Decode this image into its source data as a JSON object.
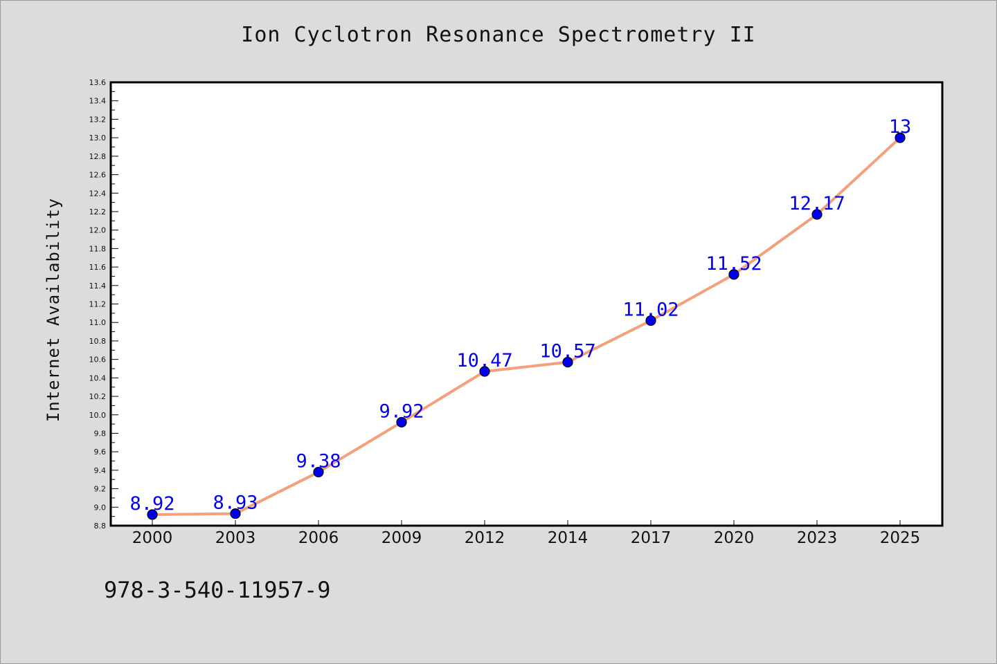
{
  "chart_data": {
    "type": "line",
    "title": "Ion Cyclotron Resonance Spectrometry II",
    "xlabel": "",
    "ylabel": "Internet Availability",
    "categories": [
      "2000",
      "2003",
      "2006",
      "2009",
      "2012",
      "2014",
      "2017",
      "2020",
      "2023",
      "2025"
    ],
    "series": [
      {
        "values": [
          8.92,
          8.93,
          9.38,
          9.92,
          10.47,
          10.57,
          11.02,
          11.52,
          12.17,
          13
        ],
        "labels": [
          "8.92",
          "8.93",
          "9.38",
          "9.92",
          "10.47",
          "10.57",
          "11.02",
          "11.52",
          "12.17",
          "13"
        ],
        "line_color": "#f4a07c",
        "marker_color": "#0000ee",
        "label_color": "#0000ee"
      }
    ],
    "ylim": [
      8.8,
      13.6
    ],
    "y_ticks": [
      "8.8",
      "9.0",
      "9.2",
      "9.4",
      "9.6",
      "9.8",
      "10.0",
      "10.2",
      "10.4",
      "10.6",
      "10.8",
      "11.0",
      "11.2",
      "11.4",
      "11.6",
      "11.8",
      "12.0",
      "12.2",
      "12.4",
      "12.6",
      "12.8",
      "13.0",
      "13.2",
      "13.4",
      "13.6"
    ],
    "grid": false,
    "legend": "none"
  },
  "footnote": "978-3-540-11957-9"
}
